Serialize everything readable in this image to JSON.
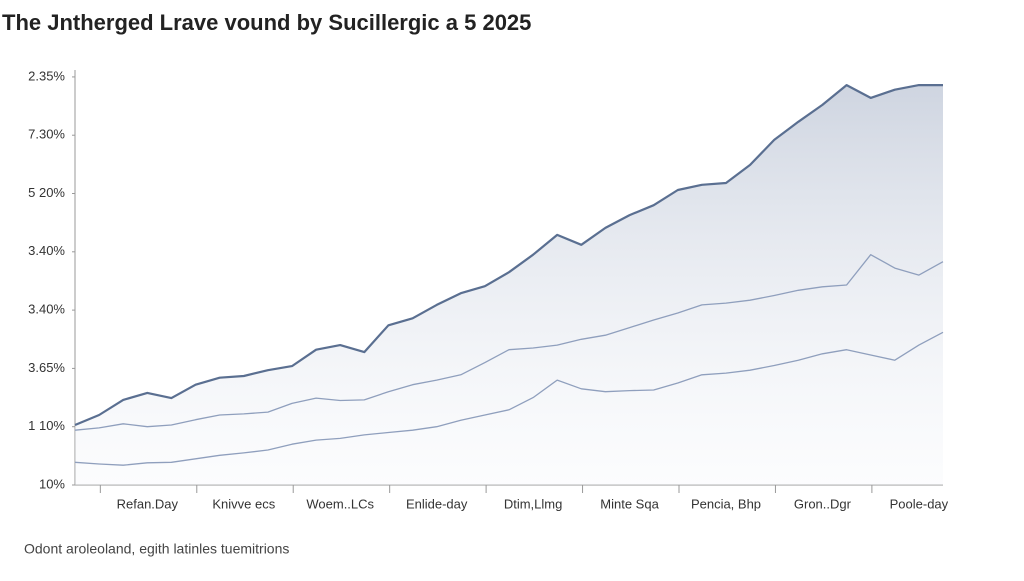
{
  "chart_data": {
    "type": "line",
    "title": "The Jntherged Lrave vound by Sucillergic a 5 2025",
    "footnote": "Odont aroleoland, egith latinles tuemitrions",
    "x": [
      0,
      1,
      2,
      3,
      4,
      5,
      6,
      7,
      8,
      9,
      10,
      11,
      12,
      13,
      14,
      15,
      16,
      17,
      18,
      19,
      20,
      21,
      22,
      23,
      24,
      25,
      26,
      27,
      28,
      29,
      30,
      31,
      32,
      33,
      34,
      35,
      36
    ],
    "xlim": [
      0,
      36
    ],
    "xticks": [
      {
        "value": 3,
        "label": "Refan.Day"
      },
      {
        "value": 7,
        "label": "Knivve ecs"
      },
      {
        "value": 11,
        "label": "Woem..LCs"
      },
      {
        "value": 15,
        "label": "Enlide-day"
      },
      {
        "value": 19,
        "label": "Dtim,Llmg"
      },
      {
        "value": 23,
        "label": "Minte Sqa"
      },
      {
        "value": 27,
        "label": "Pencia, Bhp"
      },
      {
        "value": 31,
        "label": "Gron..Dgr"
      },
      {
        "value": 35,
        "label": "Poole-day"
      }
    ],
    "ylim": [
      0,
      7.05
    ],
    "yticks": [
      {
        "value": 0,
        "label": "10%"
      },
      {
        "value": 1,
        "label": "1 10%"
      },
      {
        "value": 2,
        "label": "3.65%"
      },
      {
        "value": 3,
        "label": "3.40%"
      },
      {
        "value": 4,
        "label": "3.40%"
      },
      {
        "value": 5,
        "label": "5 20%"
      },
      {
        "value": 6,
        "label": "7.30%"
      },
      {
        "value": 7,
        "label": "2.35%"
      }
    ],
    "grid": false,
    "series": [
      {
        "color": "#5a6f91",
        "area": true,
        "values": [
          1.03,
          1.2,
          1.46,
          1.58,
          1.49,
          1.72,
          1.84,
          1.87,
          1.97,
          2.04,
          2.32,
          2.4,
          2.28,
          2.74,
          2.86,
          3.09,
          3.29,
          3.41,
          3.65,
          3.95,
          4.29,
          4.12,
          4.41,
          4.63,
          4.8,
          5.06,
          5.15,
          5.18,
          5.49,
          5.92,
          6.23,
          6.52,
          6.86,
          6.64,
          6.78,
          6.86,
          6.86
        ]
      },
      {
        "color": "#8f9fbd",
        "values": [
          0.94,
          0.98,
          1.05,
          1.0,
          1.03,
          1.12,
          1.2,
          1.22,
          1.25,
          1.4,
          1.49,
          1.45,
          1.46,
          1.6,
          1.72,
          1.8,
          1.89,
          2.1,
          2.32,
          2.35,
          2.4,
          2.5,
          2.57,
          2.7,
          2.83,
          2.95,
          3.09,
          3.12,
          3.17,
          3.25,
          3.34,
          3.4,
          3.43,
          3.95,
          3.72,
          3.6,
          3.83
        ]
      },
      {
        "color": "#8f9fbd",
        "values": [
          0.39,
          0.36,
          0.34,
          0.38,
          0.39,
          0.45,
          0.51,
          0.55,
          0.6,
          0.7,
          0.77,
          0.8,
          0.86,
          0.9,
          0.94,
          1.0,
          1.11,
          1.2,
          1.29,
          1.5,
          1.8,
          1.65,
          1.6,
          1.62,
          1.63,
          1.75,
          1.89,
          1.92,
          1.97,
          2.05,
          2.14,
          2.25,
          2.32,
          2.23,
          2.14,
          2.4,
          2.62
        ]
      }
    ]
  }
}
